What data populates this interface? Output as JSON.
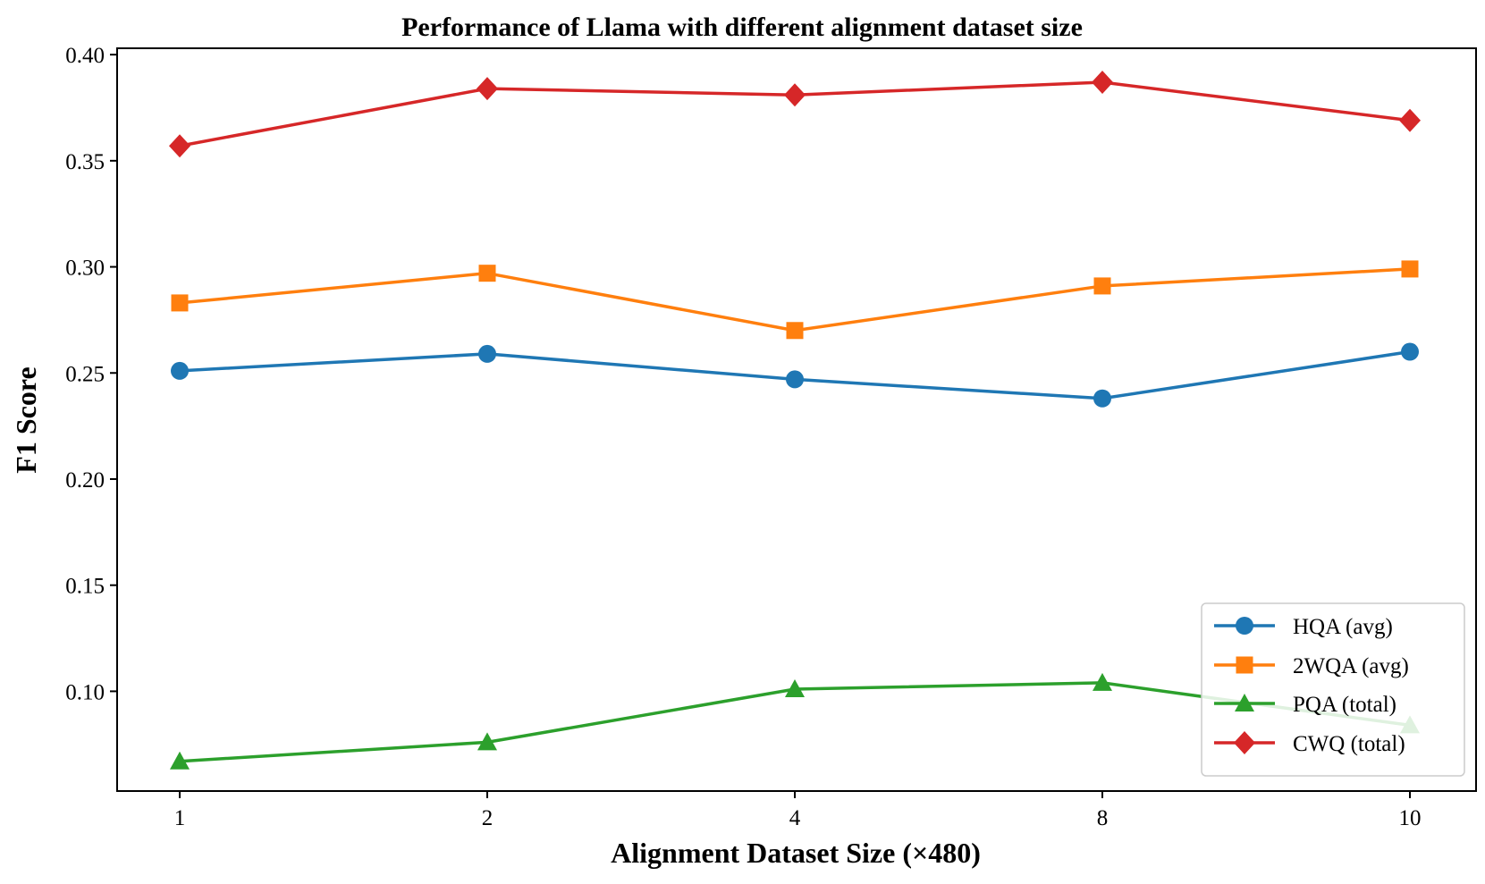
{
  "chart_data": {
    "type": "line",
    "title": "Performance of Llama with different alignment dataset size",
    "xlabel": "Alignment Dataset Size (×480)",
    "ylabel": "F1 Score",
    "categories": [
      "1",
      "2",
      "4",
      "8",
      "10"
    ],
    "ylim": [
      0.053,
      0.403
    ],
    "yticks": [
      "0.10",
      "0.15",
      "0.20",
      "0.25",
      "0.30",
      "0.35",
      "0.40"
    ],
    "ytick_values": [
      0.1,
      0.15,
      0.2,
      0.25,
      0.3,
      0.35,
      0.4
    ],
    "grid": false,
    "legend_position": "bottom-right",
    "series": [
      {
        "name": "HQA (avg)",
        "color": "#1f77b4",
        "marker": "circle",
        "values": [
          0.251,
          0.259,
          0.247,
          0.238,
          0.26
        ]
      },
      {
        "name": "2WQA (avg)",
        "color": "#ff7f0e",
        "marker": "square",
        "values": [
          0.283,
          0.297,
          0.27,
          0.291,
          0.299
        ]
      },
      {
        "name": "PQA (total)",
        "color": "#2ca02c",
        "marker": "triangle",
        "values": [
          0.067,
          0.076,
          0.101,
          0.104,
          0.084
        ]
      },
      {
        "name": "CWQ (total)",
        "color": "#d62728",
        "marker": "diamond",
        "values": [
          0.357,
          0.384,
          0.381,
          0.387,
          0.369
        ]
      }
    ]
  }
}
